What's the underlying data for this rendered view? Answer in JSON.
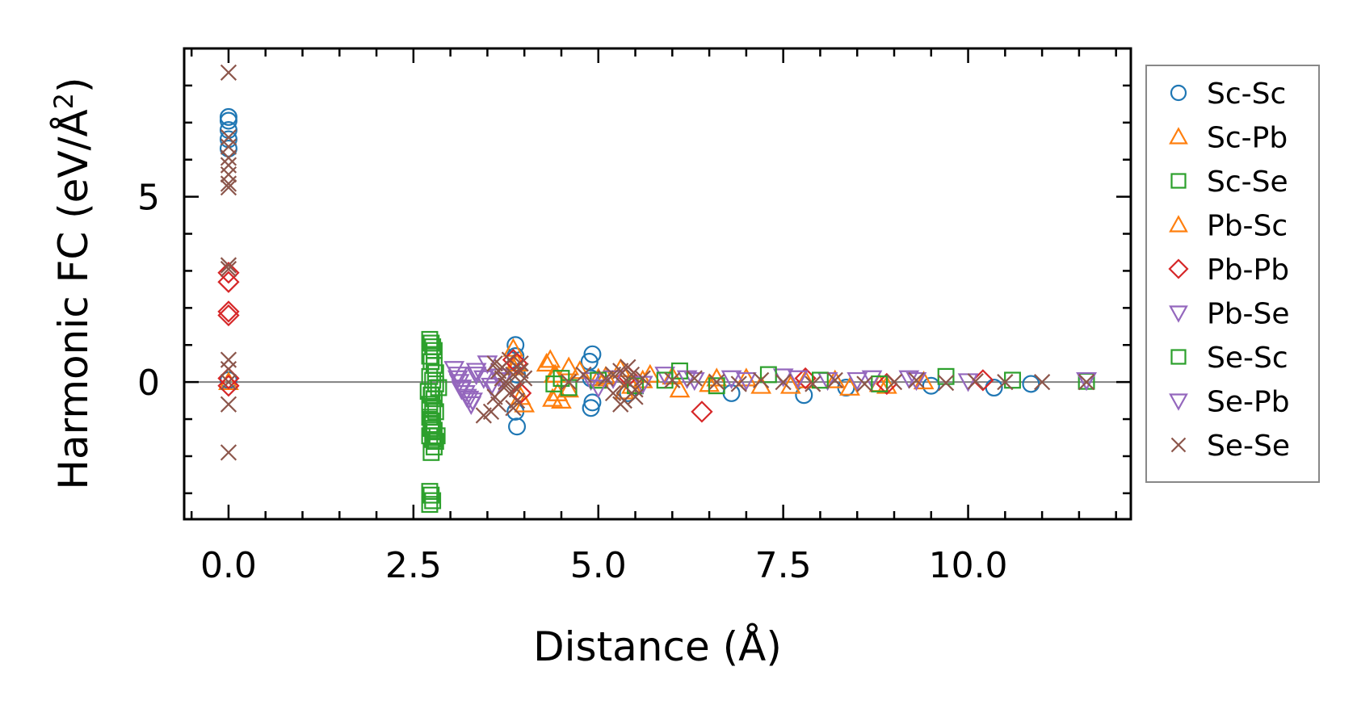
{
  "chart_data": {
    "type": "scatter",
    "title": "",
    "xlabel": "Distance (Å)",
    "ylabel": "Harmonic FC (eV/Å²)",
    "ylabel_main": "Harmonic FC (eV/Å",
    "ylabel_sup": "2",
    "ylabel_end": ")",
    "xlim": [
      -0.6,
      12.2
    ],
    "ylim": [
      -3.7,
      9.0
    ],
    "xticks": [
      0.0,
      2.5,
      5.0,
      7.5,
      10.0
    ],
    "xtick_labels": [
      "0.0",
      "2.5",
      "5.0",
      "7.5",
      "10.0"
    ],
    "yticks": [
      0,
      5
    ],
    "ytick_labels": [
      "0",
      "5"
    ],
    "x_minor_step": 0.5,
    "y_minor_step": 1,
    "zero_line": true,
    "legend_position": "right",
    "series": [
      {
        "name": "Sc-Sc",
        "marker": "circle",
        "color": "#1f77b4",
        "x": [
          0.0,
          0.0,
          0.0,
          0.0,
          0.0,
          0.0,
          3.88,
          3.88,
          3.9,
          3.88,
          3.9,
          4.92,
          4.88,
          4.9,
          4.92,
          4.9,
          5.4,
          6.8,
          7.78,
          8.35,
          9.5,
          10.35,
          10.85
        ],
        "y": [
          7.15,
          7.05,
          6.8,
          6.55,
          6.3,
          0.05,
          1.0,
          0.7,
          0.2,
          -0.8,
          -1.2,
          0.75,
          0.55,
          0.1,
          -0.55,
          -0.7,
          -0.3,
          -0.3,
          -0.35,
          -0.15,
          -0.1,
          -0.15,
          -0.05
        ]
      },
      {
        "name": "Sc-Pb",
        "marker": "triangle-up",
        "color": "#ff7f0e",
        "x": [
          3.85,
          3.9,
          3.95,
          4.35,
          4.4,
          4.45,
          4.5,
          4.6,
          5.0,
          5.3,
          5.45,
          5.7,
          6.1,
          6.6,
          7.2,
          7.8,
          8.4,
          8.9
        ],
        "y": [
          0.9,
          0.5,
          -0.4,
          0.6,
          0.2,
          -0.3,
          -0.5,
          0.4,
          0.1,
          0.35,
          -0.1,
          0.2,
          -0.2,
          0.1,
          -0.1,
          0.05,
          -0.15,
          -0.1
        ]
      },
      {
        "name": "Sc-Se",
        "marker": "square",
        "color": "#2ca02c",
        "x": [
          2.72,
          2.74,
          2.76,
          2.78,
          2.72,
          2.74,
          2.78,
          2.8,
          2.72,
          2.76,
          2.8,
          2.84,
          2.7,
          2.74,
          2.78,
          2.72,
          2.76,
          2.8,
          2.72,
          2.74,
          2.76,
          2.78,
          2.82,
          2.8,
          2.78,
          2.72,
          2.74,
          2.76,
          2.72,
          2.74,
          2.76,
          2.72,
          2.74
        ],
        "y": [
          1.15,
          1.05,
          0.95,
          0.85,
          0.7,
          0.55,
          0.45,
          0.25,
          0.15,
          0.05,
          -0.05,
          -0.15,
          -0.25,
          -0.35,
          -0.45,
          -0.6,
          -0.7,
          -0.8,
          -0.95,
          -1.05,
          -1.15,
          -1.3,
          -1.45,
          -1.6,
          -1.75,
          -1.45,
          -1.25,
          -1.55,
          -2.95,
          -3.05,
          -3.2,
          -3.3,
          -1.9
        ]
      },
      {
        "name": "Pb-Sc",
        "marker": "triangle-up",
        "color": "#ff7f0e",
        "x": [
          0.0,
          3.85,
          4.0,
          4.3,
          4.38,
          4.42,
          4.6,
          4.75,
          5.1,
          5.35,
          5.6,
          6.0,
          6.5,
          7.0,
          7.6,
          8.2,
          8.8,
          9.4
        ],
        "y": [
          0.0,
          0.4,
          -0.6,
          0.5,
          -0.45,
          0.2,
          -0.2,
          0.3,
          0.15,
          -0.25,
          0.05,
          0.15,
          -0.05,
          0.1,
          -0.1,
          0.05,
          -0.05,
          0.02
        ]
      },
      {
        "name": "Pb-Pb",
        "marker": "diamond",
        "color": "#d62728",
        "x": [
          0.0,
          0.0,
          0.0,
          0.0,
          0.0,
          0.0,
          3.85,
          3.9,
          3.95,
          5.4,
          6.4,
          7.8,
          8.9,
          10.2
        ],
        "y": [
          2.95,
          2.7,
          1.9,
          1.8,
          0.1,
          -0.1,
          0.6,
          0.5,
          -0.3,
          0.15,
          -0.8,
          0.1,
          -0.05,
          0.05
        ]
      },
      {
        "name": "Pb-Se",
        "marker": "triangle-down",
        "color": "#9467bd",
        "x": [
          3.05,
          3.1,
          3.12,
          3.15,
          3.2,
          3.25,
          3.3,
          3.35,
          3.45,
          3.5,
          3.6,
          3.7,
          4.9,
          5.2,
          5.9,
          6.3,
          6.8,
          7.5,
          8.1,
          8.7,
          9.3,
          10.0,
          11.6
        ],
        "y": [
          0.35,
          0.2,
          0.0,
          -0.15,
          -0.3,
          -0.45,
          -0.5,
          0.3,
          0.1,
          0.5,
          -0.2,
          0.05,
          0.05,
          0.1,
          0.2,
          0.05,
          0.1,
          0.15,
          0.05,
          0.1,
          0.05,
          0.02,
          0.05
        ]
      },
      {
        "name": "Se-Sc",
        "marker": "square",
        "color": "#2ca02c",
        "x": [
          2.75,
          4.4,
          4.5,
          4.6,
          5.0,
          5.5,
          5.9,
          6.1,
          6.6,
          7.3,
          8.0,
          8.8,
          9.7,
          10.6,
          11.6
        ],
        "y": [
          -0.35,
          -0.05,
          0.1,
          -0.15,
          0.05,
          -0.1,
          0.05,
          0.3,
          -0.1,
          0.2,
          0.05,
          -0.05,
          0.15,
          0.05,
          0.02
        ]
      },
      {
        "name": "Se-Pb",
        "marker": "triangle-down",
        "color": "#9467bd",
        "x": [
          3.1,
          3.15,
          3.22,
          3.28,
          3.35,
          3.55,
          3.65,
          5.0,
          5.6,
          6.2,
          7.0,
          7.7,
          8.5,
          9.2,
          11.6
        ],
        "y": [
          0.1,
          -0.2,
          -0.4,
          -0.6,
          0.2,
          -0.1,
          0.15,
          -0.15,
          -0.05,
          0.1,
          0.05,
          0.1,
          0.05,
          0.1,
          0.05
        ]
      },
      {
        "name": "Se-Se",
        "marker": "x",
        "color": "#8c564b",
        "x": [
          0.0,
          0.0,
          0.0,
          0.0,
          0.0,
          0.0,
          0.0,
          0.0,
          0.0,
          0.0,
          0.0,
          0.0,
          0.0,
          0.0,
          0.0,
          3.45,
          3.55,
          3.6,
          3.65,
          3.7,
          3.75,
          3.8,
          3.85,
          3.9,
          3.95,
          4.0,
          3.6,
          3.7,
          3.8,
          3.9,
          3.65,
          3.75,
          3.85,
          3.95,
          4.6,
          4.8,
          5.1,
          5.2,
          5.3,
          5.35,
          5.4,
          5.45,
          5.5,
          5.6,
          5.3,
          5.4,
          5.5,
          5.2,
          5.35,
          6.0,
          6.3,
          6.6,
          6.9,
          7.2,
          7.5,
          7.9,
          8.2,
          8.6,
          9.0,
          9.3,
          9.7,
          10.1,
          10.5,
          11.0,
          11.6
        ],
        "y": [
          8.35,
          6.6,
          6.35,
          6.05,
          5.85,
          5.6,
          5.35,
          5.25,
          3.15,
          3.05,
          0.6,
          0.35,
          0.0,
          -0.6,
          -1.9,
          -0.9,
          -0.8,
          0.5,
          0.3,
          0.1,
          -0.1,
          -0.3,
          0.2,
          -0.5,
          0.3,
          0.1,
          -0.4,
          0.4,
          0.6,
          -0.2,
          -0.6,
          0.0,
          -0.7,
          0.5,
          0.0,
          0.2,
          0.1,
          -0.3,
          0.3,
          -0.5,
          0.0,
          0.2,
          -0.2,
          0.1,
          -0.6,
          0.4,
          -0.4,
          0.2,
          -0.1,
          0.05,
          0.1,
          0.0,
          -0.05,
          0.05,
          0.0,
          -0.05,
          0.05,
          -0.05,
          0.0,
          0.05,
          -0.02,
          0.02,
          0.0,
          0.0,
          0.0
        ]
      }
    ]
  }
}
